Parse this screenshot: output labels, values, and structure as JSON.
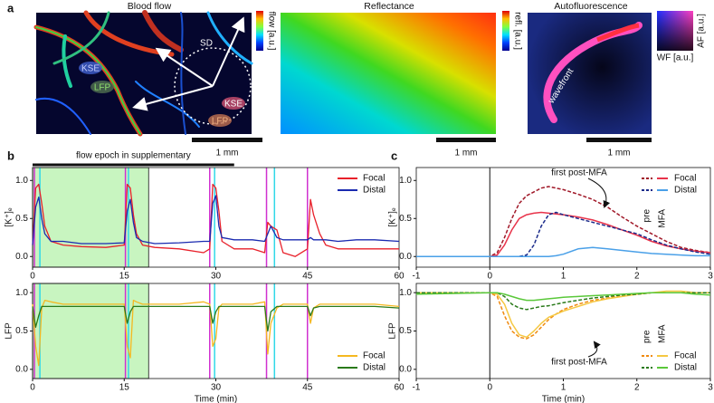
{
  "panel_a": {
    "label": "a",
    "images": [
      {
        "title": "Blood flow",
        "colorbar": "flow [a.u.]",
        "scale_bar": "1 mm",
        "labels": [
          "KSE",
          "LFP",
          "SD",
          "KSE",
          "LFP"
        ]
      },
      {
        "title": "Reflectance",
        "colorbar": "refl. [a.u.]",
        "scale_bar": "1 mm"
      },
      {
        "title": "Autofluorescence",
        "colorbar_y": "AF [a.u.]",
        "colorbar_x": "WF [a.u.]",
        "scale_bar": "1 mm",
        "labels": [
          "wavefront"
        ]
      }
    ]
  },
  "chart_data": [
    {
      "type": "line",
      "panel": "b",
      "ylabel": "[K⁺]ₑ",
      "epoch": {
        "label": "flow epoch in supplementary",
        "range": [
          0,
          33
        ]
      },
      "shaded": [
        0,
        19
      ],
      "shade_color": "#c8f5c0",
      "markers": [
        {
          "x": 0.3,
          "color": "#d030d0"
        },
        {
          "x": 1.2,
          "color": "#30d8e8"
        },
        {
          "x": 15.2,
          "color": "#d030d0"
        },
        {
          "x": 15.7,
          "color": "#30d8e8"
        },
        {
          "x": 29,
          "color": "#d030d0"
        },
        {
          "x": 29.8,
          "color": "#30d8e8"
        },
        {
          "x": 38.3,
          "color": "#d030d0"
        },
        {
          "x": 39.6,
          "color": "#30d8e8"
        },
        {
          "x": 45,
          "color": "#d030d0"
        }
      ],
      "x": [
        0,
        0.5,
        1,
        1.5,
        2,
        3,
        5,
        8,
        12,
        15,
        15.5,
        16,
        16.5,
        17,
        18,
        20,
        24,
        28,
        29,
        29.5,
        30,
        30.5,
        31,
        33,
        36,
        38,
        38.5,
        39,
        40,
        41,
        43,
        45,
        45.5,
        46,
        47,
        48,
        50,
        53,
        56,
        60
      ],
      "series": [
        {
          "name": "Focal",
          "color": "#e8202a",
          "values": [
            0.15,
            0.9,
            0.95,
            0.7,
            0.4,
            0.2,
            0.15,
            0.13,
            0.12,
            0.15,
            0.95,
            0.9,
            0.55,
            0.3,
            0.15,
            0.12,
            0.1,
            0.05,
            0.1,
            0.95,
            0.9,
            0.6,
            0.2,
            0.1,
            0.1,
            0.05,
            0.45,
            0.4,
            0.35,
            0.05,
            0.0,
            0.1,
            0.75,
            0.55,
            0.3,
            0.15,
            0.1,
            0.1,
            0.1,
            0.1
          ]
        },
        {
          "name": "Distal",
          "color": "#1a2ab0",
          "values": [
            0.15,
            0.65,
            0.78,
            0.5,
            0.3,
            0.2,
            0.2,
            0.17,
            0.17,
            0.18,
            0.6,
            0.75,
            0.45,
            0.25,
            0.2,
            0.17,
            0.18,
            0.2,
            0.2,
            0.7,
            0.8,
            0.4,
            0.25,
            0.22,
            0.22,
            0.2,
            0.3,
            0.4,
            0.25,
            0.22,
            0.22,
            0.22,
            0.25,
            0.22,
            0.22,
            0.22,
            0.2,
            0.22,
            0.22,
            0.2
          ]
        }
      ],
      "xlim": [
        0,
        60
      ],
      "xticks": [
        0,
        15,
        30,
        45,
        60
      ],
      "ylim": [
        -0.14,
        1.17
      ],
      "yticks": [
        {
          "value": 0,
          "label": "0.0"
        },
        {
          "value": 0.5,
          "label": "0.5"
        },
        {
          "value": 1,
          "label": "1.0"
        }
      ],
      "legend": "upper right"
    },
    {
      "type": "line",
      "ylabel": "LFP",
      "xlabel": "Time (min)",
      "shaded": [
        0,
        19
      ],
      "shade_color": "#c8f5c0",
      "markers": [
        {
          "x": 0.3,
          "color": "#d030d0"
        },
        {
          "x": 1.2,
          "color": "#30d8e8"
        },
        {
          "x": 15.2,
          "color": "#d030d0"
        },
        {
          "x": 15.7,
          "color": "#30d8e8"
        },
        {
          "x": 29,
          "color": "#d030d0"
        },
        {
          "x": 29.8,
          "color": "#30d8e8"
        },
        {
          "x": 38.3,
          "color": "#d030d0"
        },
        {
          "x": 39.6,
          "color": "#30d8e8"
        },
        {
          "x": 45,
          "color": "#d030d0"
        }
      ],
      "x": [
        0,
        0.5,
        1,
        1.5,
        2,
        3,
        5,
        8,
        12,
        15,
        15.5,
        16,
        16.5,
        17,
        18,
        20,
        24,
        28,
        29,
        29.5,
        30,
        30.5,
        31,
        33,
        36,
        38,
        38.5,
        39,
        40,
        41,
        43,
        45,
        45.5,
        46,
        47,
        48,
        50,
        53,
        56,
        60
      ],
      "series": [
        {
          "name": "Focal",
          "color": "#f5b820",
          "values": [
            0.85,
            0.3,
            0.05,
            0.8,
            0.9,
            0.88,
            0.85,
            0.85,
            0.85,
            0.85,
            0.3,
            0.15,
            0.9,
            0.88,
            0.85,
            0.85,
            0.85,
            0.88,
            0.85,
            0.3,
            0.4,
            0.8,
            0.85,
            0.85,
            0.85,
            0.88,
            0.2,
            0.6,
            0.8,
            0.85,
            0.85,
            0.85,
            0.6,
            0.8,
            0.85,
            0.85,
            0.85,
            0.85,
            0.85,
            0.82
          ]
        },
        {
          "name": "Distal",
          "color": "#2a7a1a",
          "values": [
            0.82,
            0.55,
            0.7,
            0.82,
            0.82,
            0.82,
            0.82,
            0.82,
            0.82,
            0.82,
            0.6,
            0.75,
            0.82,
            0.82,
            0.82,
            0.82,
            0.82,
            0.82,
            0.82,
            0.6,
            0.75,
            0.82,
            0.82,
            0.82,
            0.82,
            0.82,
            0.5,
            0.75,
            0.82,
            0.82,
            0.82,
            0.82,
            0.7,
            0.8,
            0.82,
            0.82,
            0.82,
            0.82,
            0.82,
            0.8
          ]
        }
      ],
      "xlim": [
        0,
        60
      ],
      "xticks": [
        0,
        15,
        30,
        45,
        60
      ],
      "ylim": [
        -0.12,
        1.12
      ],
      "yticks": [
        {
          "value": 0,
          "label": "0.0"
        },
        {
          "value": 0.5,
          "label": "0.5"
        },
        {
          "value": 1,
          "label": "1.0"
        }
      ],
      "legend": "lower right"
    },
    {
      "type": "line",
      "panel": "c",
      "ylabel": "[K⁺]ₑ",
      "vline": 0,
      "annotation": "first post-MFA",
      "legend_columns": [
        "pre",
        "MFA"
      ],
      "x": [
        -1,
        0,
        0.1,
        0.2,
        0.3,
        0.4,
        0.5,
        0.6,
        0.7,
        0.8,
        0.9,
        1.0,
        1.2,
        1.4,
        1.6,
        1.8,
        2.0,
        2.2,
        2.4,
        2.6,
        2.8,
        3.0
      ],
      "series": [
        {
          "name": "Focal",
          "conditions": [
            {
              "style": "dashed",
              "color": "#a01828",
              "values": [
                0,
                0,
                0.05,
                0.25,
                0.5,
                0.7,
                0.8,
                0.85,
                0.9,
                0.92,
                0.9,
                0.88,
                0.82,
                0.75,
                0.65,
                0.52,
                0.4,
                0.3,
                0.2,
                0.12,
                0.08,
                0.05
              ]
            },
            {
              "style": "solid",
              "color": "#e8334a",
              "values": [
                0,
                0,
                0.02,
                0.15,
                0.35,
                0.5,
                0.55,
                0.57,
                0.58,
                0.57,
                0.56,
                0.55,
                0.52,
                0.48,
                0.42,
                0.35,
                0.28,
                0.2,
                0.14,
                0.1,
                0.07,
                0.05
              ]
            }
          ]
        },
        {
          "name": "Distal",
          "conditions": [
            {
              "style": "dashed",
              "color": "#1a2a8a",
              "values": [
                0,
                0,
                0,
                0,
                0,
                0,
                0.02,
                0.15,
                0.4,
                0.55,
                0.58,
                0.55,
                0.5,
                0.45,
                0.4,
                0.35,
                0.3,
                0.22,
                0.15,
                0.1,
                0.06,
                0.03
              ]
            },
            {
              "style": "solid",
              "color": "#4aa0e8",
              "values": [
                0,
                0,
                0,
                0,
                0,
                0,
                0,
                0,
                0,
                0,
                0.01,
                0.03,
                0.1,
                0.12,
                0.1,
                0.08,
                0.06,
                0.04,
                0.03,
                0.02,
                0.01,
                0.01
              ]
            }
          ]
        }
      ],
      "xlim": [
        -1,
        3
      ],
      "xticks": [
        -1,
        0,
        1,
        2,
        3
      ],
      "ylim": [
        -0.14,
        1.17
      ],
      "yticks": [
        {
          "value": 0,
          "label": "0.0"
        },
        {
          "value": 0.5,
          "label": "0.5"
        },
        {
          "value": 1,
          "label": "1.0"
        }
      ],
      "legend": "upper right"
    },
    {
      "type": "line",
      "ylabel": "LFP",
      "xlabel": "Time (min)",
      "vline": 0,
      "annotation": "first post-MFA",
      "legend_columns": [
        "pre",
        "MFA"
      ],
      "x": [
        -1,
        0,
        0.1,
        0.2,
        0.3,
        0.4,
        0.5,
        0.6,
        0.7,
        0.8,
        0.9,
        1.0,
        1.2,
        1.4,
        1.6,
        1.8,
        2.0,
        2.2,
        2.4,
        2.6,
        2.8,
        3.0
      ],
      "series": [
        {
          "name": "Focal",
          "conditions": [
            {
              "style": "dashed",
              "color": "#f08a10",
              "values": [
                1,
                1,
                0.95,
                0.7,
                0.5,
                0.42,
                0.4,
                0.45,
                0.55,
                0.65,
                0.72,
                0.78,
                0.85,
                0.9,
                0.93,
                0.96,
                0.98,
                1,
                1,
                1,
                1,
                1
              ]
            },
            {
              "style": "solid",
              "color": "#f5c842",
              "values": [
                1,
                1,
                0.98,
                0.85,
                0.6,
                0.45,
                0.42,
                0.5,
                0.6,
                0.68,
                0.72,
                0.76,
                0.82,
                0.88,
                0.92,
                0.95,
                0.98,
                1,
                1.02,
                1.02,
                1.0,
                1.0
              ]
            }
          ]
        },
        {
          "name": "Distal",
          "conditions": [
            {
              "style": "dashed",
              "color": "#2a7a1a",
              "values": [
                1,
                1,
                1,
                0.95,
                0.85,
                0.8,
                0.78,
                0.8,
                0.82,
                0.83,
                0.85,
                0.87,
                0.9,
                0.93,
                0.95,
                0.97,
                0.98,
                1,
                1,
                1,
                1,
                1
              ]
            },
            {
              "style": "solid",
              "color": "#5ac83a",
              "values": [
                0.98,
                1,
                1,
                0.98,
                0.95,
                0.92,
                0.9,
                0.9,
                0.91,
                0.92,
                0.93,
                0.94,
                0.95,
                0.96,
                0.97,
                0.98,
                0.99,
                1,
                1,
                1,
                0.98,
                0.97
              ]
            }
          ]
        }
      ],
      "xlim": [
        -1,
        3
      ],
      "xticks": [
        -1,
        0,
        1,
        2,
        3
      ],
      "ylim": [
        -0.12,
        1.12
      ],
      "yticks": [
        {
          "value": 0,
          "label": "0.0"
        },
        {
          "value": 0.5,
          "label": "0.5"
        },
        {
          "value": 1,
          "label": "1.0"
        }
      ],
      "legend": "lower right"
    }
  ]
}
